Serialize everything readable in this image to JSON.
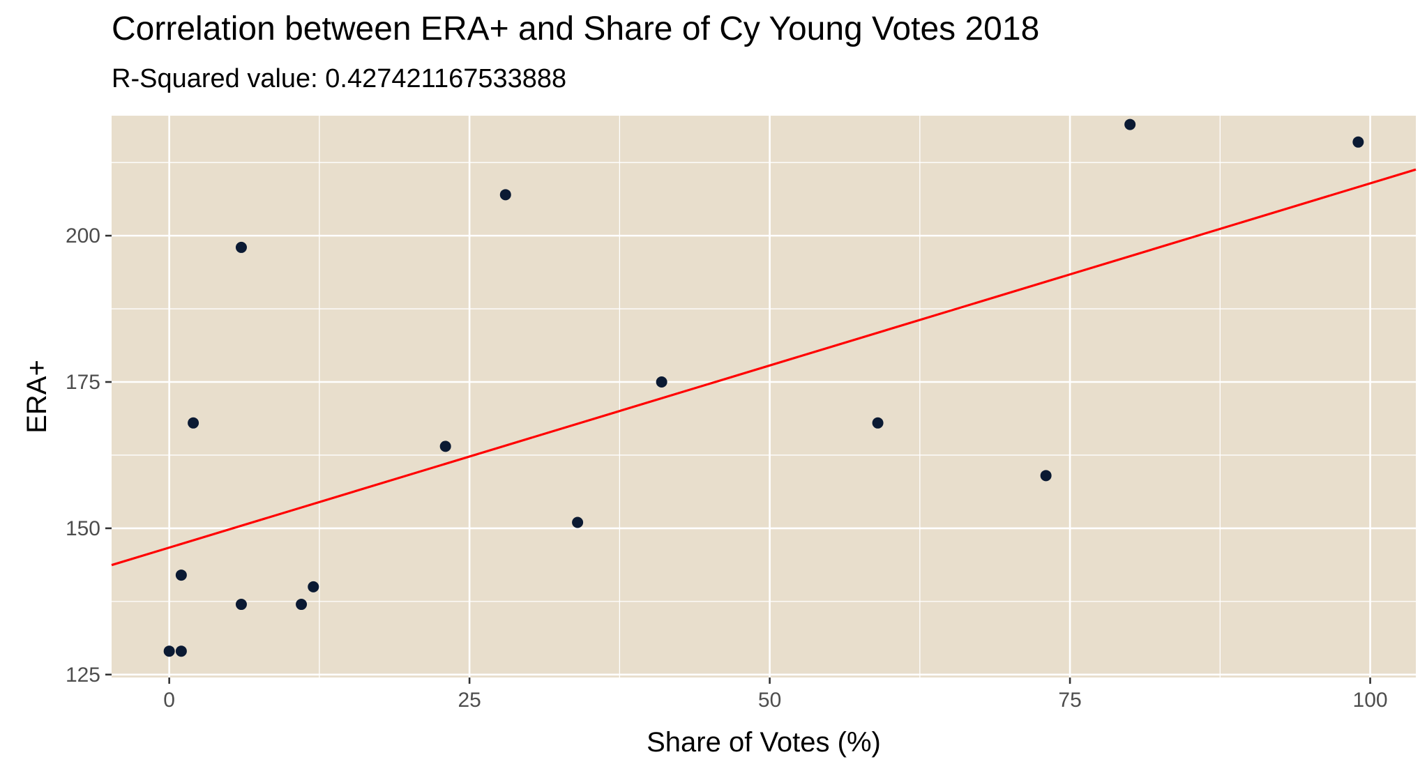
{
  "chart_data": {
    "type": "scatter",
    "title": "Correlation between ERA+ and Share of Cy Young Votes 2018",
    "subtitle": "R-Squared value: 0.427421167533888",
    "xlabel": "Share of Votes (%)",
    "ylabel": "ERA+",
    "xlim": [
      -4.8,
      103.8
    ],
    "ylim": [
      124.5,
      220.5
    ],
    "x_ticks": [
      0,
      25,
      50,
      75,
      100
    ],
    "y_ticks": [
      125,
      150,
      175,
      200
    ],
    "grid": true,
    "points": [
      {
        "x": 0,
        "y": 129
      },
      {
        "x": 1,
        "y": 129
      },
      {
        "x": 1,
        "y": 142
      },
      {
        "x": 2,
        "y": 168
      },
      {
        "x": 6,
        "y": 198
      },
      {
        "x": 6,
        "y": 137
      },
      {
        "x": 11,
        "y": 137
      },
      {
        "x": 12,
        "y": 140
      },
      {
        "x": 23,
        "y": 164
      },
      {
        "x": 28,
        "y": 207
      },
      {
        "x": 34,
        "y": 151
      },
      {
        "x": 41,
        "y": 175
      },
      {
        "x": 59,
        "y": 168
      },
      {
        "x": 73,
        "y": 159
      },
      {
        "x": 80,
        "y": 219
      },
      {
        "x": 99,
        "y": 216
      }
    ],
    "trendline": {
      "type": "linear",
      "intercept": 146.7,
      "slope": 0.6224
    },
    "colors": {
      "panel_background": "#e8decc",
      "grid": "#ffffff",
      "points": "#0b1a33",
      "trendline": "#ff0000"
    }
  }
}
